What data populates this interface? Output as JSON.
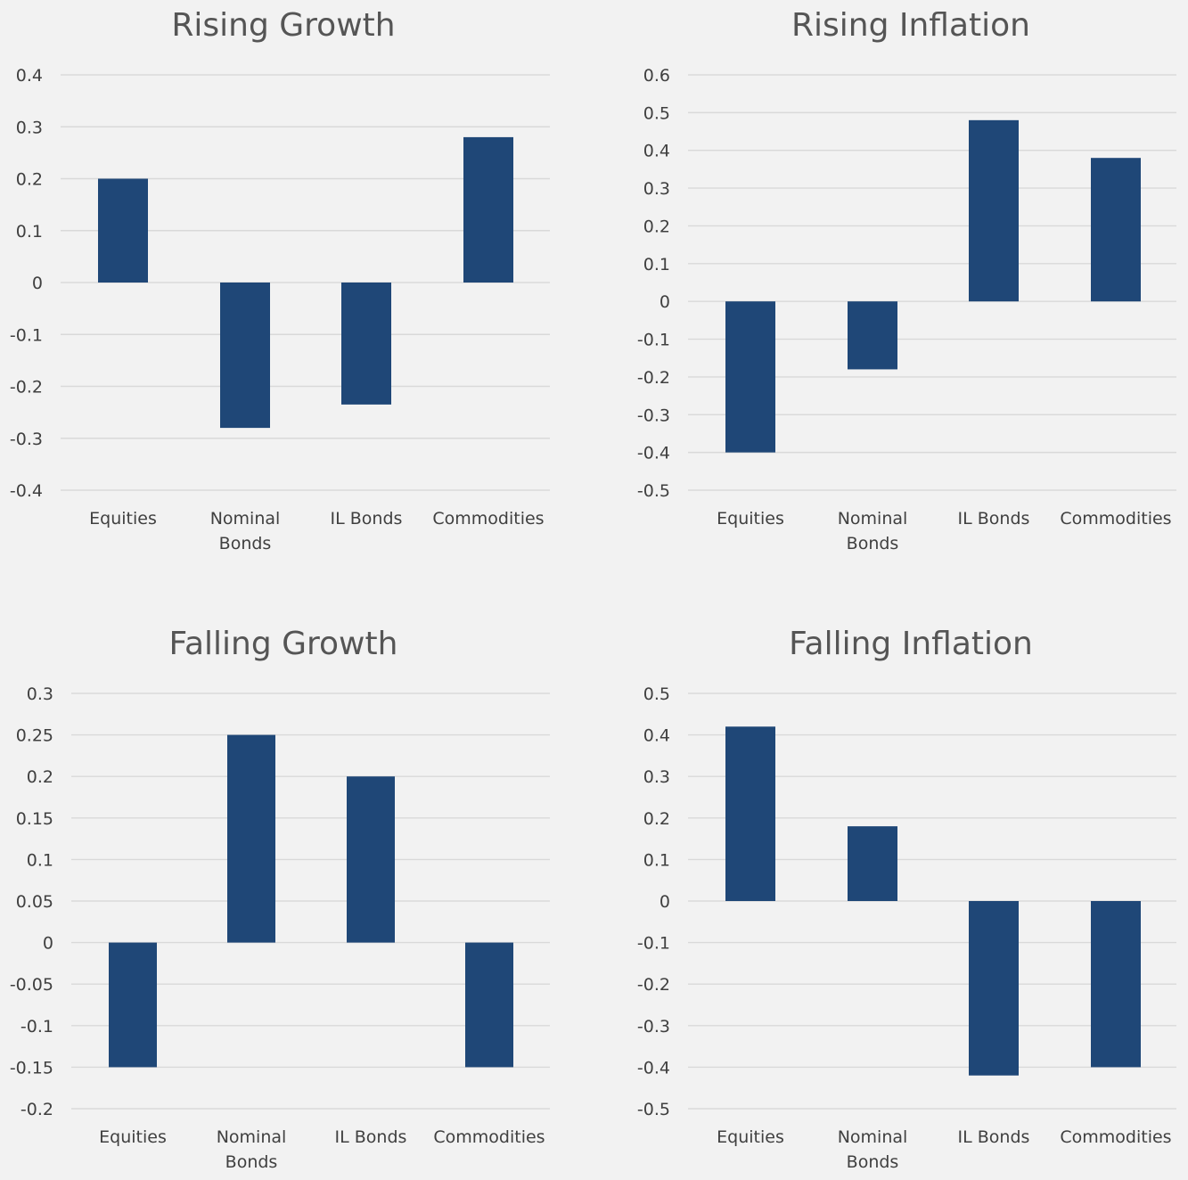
{
  "chart_data": [
    {
      "type": "bar",
      "title": "Rising Growth",
      "categories": [
        "Equities",
        "Nominal Bonds",
        "IL Bonds",
        "Commodities"
      ],
      "values": [
        0.2,
        -0.28,
        -0.235,
        0.28
      ],
      "ylim": [
        -0.4,
        0.4
      ],
      "yticks": [
        0.4,
        0.3,
        0.2,
        0.1,
        0,
        -0.1,
        -0.2,
        -0.3,
        -0.4
      ],
      "ytick_labels": [
        "0.4",
        "0.3",
        "0.2",
        "0.1",
        "0",
        "-0.1",
        "-0.2",
        "-0.3",
        "-0.4"
      ],
      "grid": true,
      "bar_color": "#1f4777"
    },
    {
      "type": "bar",
      "title": "Rising Inflation",
      "categories": [
        "Equities",
        "Nominal Bonds",
        "IL Bonds",
        "Commodities"
      ],
      "values": [
        -0.4,
        -0.18,
        0.48,
        0.38
      ],
      "ylim": [
        -0.5,
        0.6
      ],
      "yticks": [
        0.6,
        0.5,
        0.4,
        0.3,
        0.2,
        0.1,
        0,
        -0.1,
        -0.2,
        -0.3,
        -0.4,
        -0.5
      ],
      "ytick_labels": [
        "0.6",
        "0.5",
        "0.4",
        "0.3",
        "0.2",
        "0.1",
        "0",
        "-0.1",
        "-0.2",
        "-0.3",
        "-0.4",
        "-0.5"
      ],
      "grid": true,
      "bar_color": "#1f4777"
    },
    {
      "type": "bar",
      "title": "Falling Growth",
      "categories": [
        "Equities",
        "Nominal Bonds",
        "IL Bonds",
        "Commodities"
      ],
      "values": [
        -0.15,
        0.25,
        0.2,
        -0.15
      ],
      "ylim": [
        -0.2,
        0.3
      ],
      "yticks": [
        0.3,
        0.25,
        0.2,
        0.15,
        0.1,
        0.05,
        0,
        -0.05,
        -0.1,
        -0.15,
        -0.2
      ],
      "ytick_labels": [
        "0.3",
        "0.25",
        "0.2",
        "0.15",
        "0.1",
        "0.05",
        "0",
        "-0.05",
        "-0.1",
        "-0.15",
        "-0.2"
      ],
      "grid": true,
      "bar_color": "#1f4777"
    },
    {
      "type": "bar",
      "title": "Falling Inflation",
      "categories": [
        "Equities",
        "Nominal Bonds",
        "IL Bonds",
        "Commodities"
      ],
      "values": [
        0.42,
        0.18,
        -0.42,
        -0.4
      ],
      "ylim": [
        -0.5,
        0.5
      ],
      "yticks": [
        0.5,
        0.4,
        0.3,
        0.2,
        0.1,
        0,
        -0.1,
        -0.2,
        -0.3,
        -0.4,
        -0.5
      ],
      "ytick_labels": [
        "0.5",
        "0.4",
        "0.3",
        "0.2",
        "0.1",
        "0",
        "-0.1",
        "-0.2",
        "-0.3",
        "-0.4",
        "-0.5"
      ],
      "grid": true,
      "bar_color": "#1f4777"
    }
  ]
}
